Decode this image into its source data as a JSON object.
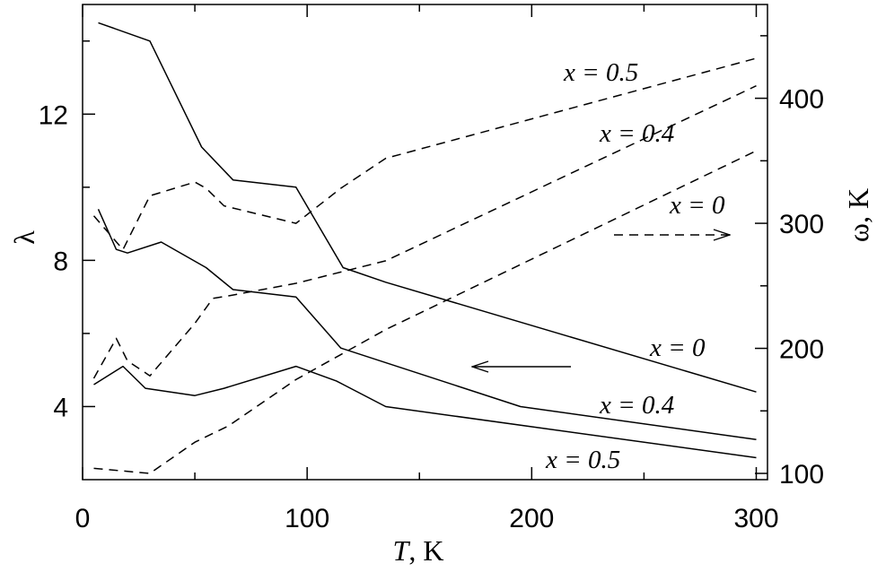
{
  "chart_data": {
    "type": "line",
    "xlabel": {
      "var": "T",
      "rest": ", K"
    },
    "ylabel_left": "λ",
    "ylabel_right": "ω, K",
    "xlim": [
      0,
      305
    ],
    "ylim_left": [
      2,
      15
    ],
    "ylim_right": [
      95,
      475
    ],
    "xticks": [
      0,
      100,
      200,
      300
    ],
    "yticks_left": [
      4,
      8,
      12
    ],
    "yticks_right": [
      100,
      200,
      300,
      400
    ],
    "grid": false,
    "series": [
      {
        "name": "x = 0.5",
        "axis": "left",
        "style": "solid",
        "x": [
          7,
          30,
          53,
          67,
          95,
          116,
          135,
          300
        ],
        "y": [
          14.5,
          14.0,
          11.1,
          10.2,
          10.0,
          7.8,
          7.4,
          4.4
        ]
      },
      {
        "name": "x = 0",
        "axis": "left",
        "style": "solid",
        "x": [
          7,
          15,
          20,
          35,
          55,
          67,
          95,
          115,
          195,
          300
        ],
        "y": [
          9.4,
          8.3,
          8.2,
          8.5,
          7.8,
          7.2,
          7.0,
          5.6,
          4.0,
          3.1
        ]
      },
      {
        "name": "x = 0.4",
        "axis": "left",
        "style": "solid",
        "x": [
          5,
          18,
          28,
          50,
          63,
          95,
          113,
          135,
          300
        ],
        "y": [
          4.6,
          5.1,
          4.5,
          4.3,
          4.5,
          5.1,
          4.7,
          4.0,
          2.6
        ]
      },
      {
        "name": "x = 0.5",
        "axis": "right",
        "style": "dashed",
        "x": [
          5,
          18,
          30,
          50,
          55,
          63,
          95,
          115,
          135,
          300
        ],
        "y": [
          306,
          279,
          322,
          333,
          328,
          314,
          300,
          328,
          352,
          432
        ]
      },
      {
        "name": "x = 0.4",
        "axis": "right",
        "style": "dashed",
        "x": [
          5,
          15,
          20,
          30,
          50,
          58,
          65,
          95,
          135,
          300
        ],
        "y": [
          176,
          208,
          190,
          178,
          220,
          240,
          242,
          252,
          270,
          410
        ]
      },
      {
        "name": "x = 0",
        "axis": "right",
        "style": "dashed",
        "x": [
          5,
          30,
          50,
          65,
          95,
          135,
          300
        ],
        "y": [
          104,
          100,
          125,
          138,
          175,
          215,
          358
        ]
      }
    ],
    "annotations": [
      {
        "text": "x = 0.5"
      },
      {
        "text": "x = 0.4"
      },
      {
        "text": "x = 0"
      },
      {
        "text": "x = 0"
      },
      {
        "text": "x = 0.4"
      },
      {
        "text": "x = 0.5"
      }
    ],
    "arrows": [
      {
        "direction": "right",
        "style": "dashed",
        "axis": "right"
      },
      {
        "direction": "left",
        "style": "solid",
        "axis": "left"
      }
    ]
  }
}
